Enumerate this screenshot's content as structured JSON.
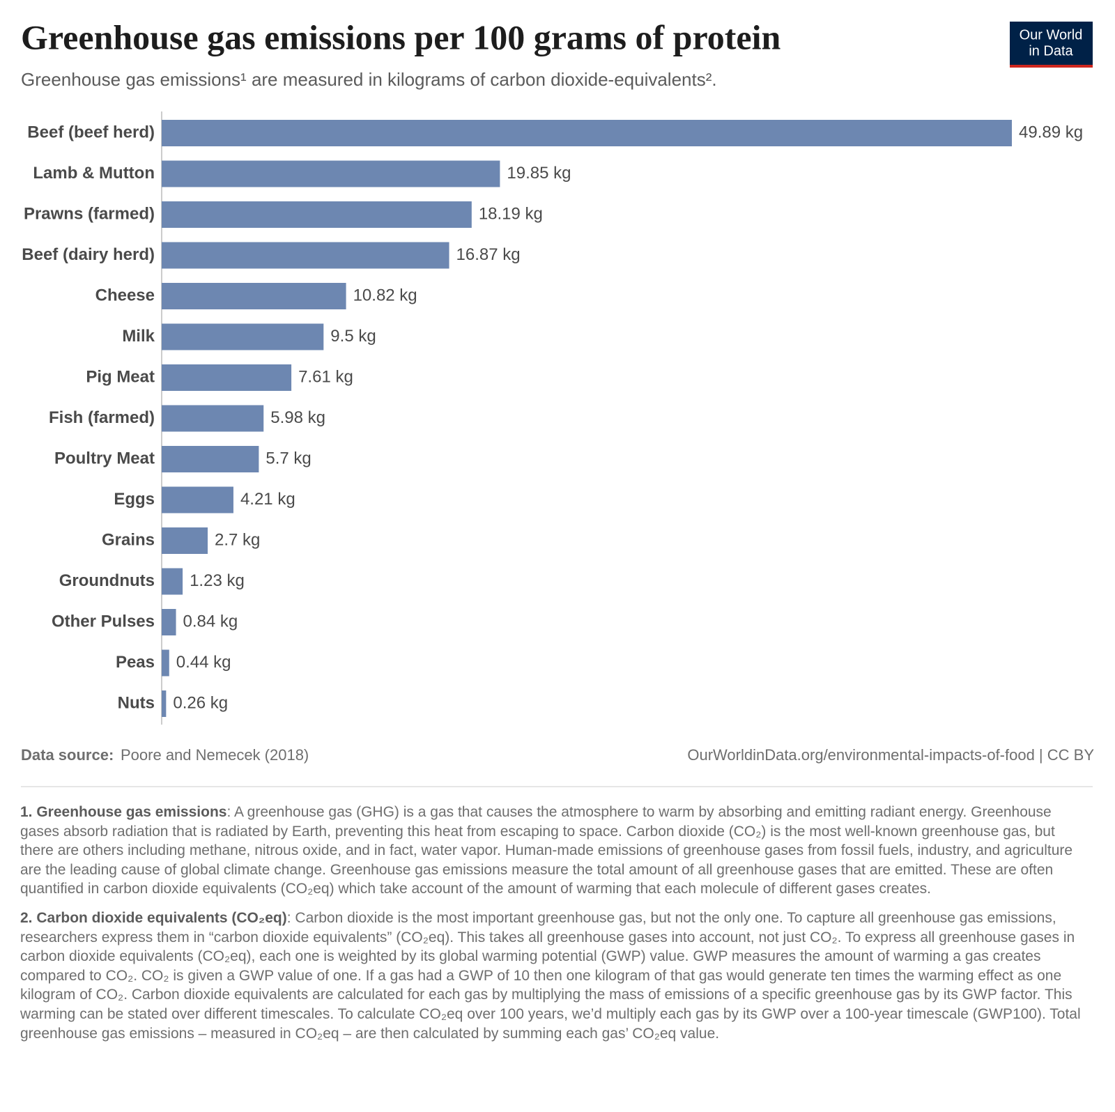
{
  "chart_data": {
    "type": "bar",
    "orientation": "horizontal",
    "title": "Greenhouse gas emissions per 100 grams of protein",
    "subtitle": "Greenhouse gas emissions¹ are measured in kilograms of carbon dioxide-equivalents².",
    "categories": [
      "Beef (beef herd)",
      "Lamb & Mutton",
      "Prawns (farmed)",
      "Beef (dairy herd)",
      "Cheese",
      "Milk",
      "Pig Meat",
      "Fish (farmed)",
      "Poultry Meat",
      "Eggs",
      "Grains",
      "Groundnuts",
      "Other Pulses",
      "Peas",
      "Nuts"
    ],
    "values": [
      49.89,
      19.85,
      18.19,
      16.87,
      10.82,
      9.5,
      7.61,
      5.98,
      5.7,
      4.21,
      2.7,
      1.23,
      0.84,
      0.44,
      0.26
    ],
    "value_labels": [
      "49.89 kg",
      "19.85 kg",
      "18.19 kg",
      "16.87 kg",
      "10.82 kg",
      "9.5 kg",
      "7.61 kg",
      "5.98 kg",
      "5.7 kg",
      "4.21 kg",
      "2.7 kg",
      "1.23 kg",
      "0.84 kg",
      "0.44 kg",
      "0.26 kg"
    ],
    "color": "#6d87b1",
    "source_label": "Data source:",
    "source": "Poore and Nemecek (2018)",
    "url": "OurWorldinData.org/environmental-impacts-of-food | CC BY",
    "logo": [
      "Our World",
      "in Data"
    ]
  },
  "footnotes": [
    {
      "heading": "1. Greenhouse gas emissions",
      "text": ": A greenhouse gas (GHG) is a gas that causes the atmosphere to warm by absorbing and emitting radiant energy. Greenhouse gases absorb radiation that is radiated by Earth, preventing this heat from escaping to space. Carbon dioxide (CO₂) is the most well-known greenhouse gas, but there are others including methane, nitrous oxide, and in fact, water vapor. Human-made emissions of greenhouse gases from fossil fuels, industry, and agriculture are the leading cause of global climate change. Greenhouse gas emissions measure the total amount of all greenhouse gases that are emitted. These are often quantified in carbon dioxide equivalents (CO₂eq) which take account of the amount of warming that each molecule of different gases creates."
    },
    {
      "heading": "2. Carbon dioxide equivalents (CO₂eq)",
      "text": ": Carbon dioxide is the most important greenhouse gas, but not the only one. To capture all greenhouse gas emissions, researchers express them in “carbon dioxide equivalents” (CO₂eq). This takes all greenhouse gases into account, not just CO₂. To express all greenhouse gases in carbon dioxide equivalents (CO₂eq), each one is weighted by its global warming potential (GWP) value. GWP measures the amount of warming a gas creates compared to CO₂. CO₂ is given a GWP value of one. If a gas had a GWP of 10 then one kilogram of that gas would generate ten times the warming effect as one kilogram of CO₂. Carbon dioxide equivalents are calculated for each gas by multiplying the mass of emissions of a specific greenhouse gas by its GWP factor. This warming can be stated over different timescales. To calculate CO₂eq over 100 years, we’d multiply each gas by its GWP over a 100-year timescale (GWP100). Total greenhouse gas emissions – measured in CO₂eq – are then calculated by summing each gas’ CO₂eq value."
    }
  ]
}
